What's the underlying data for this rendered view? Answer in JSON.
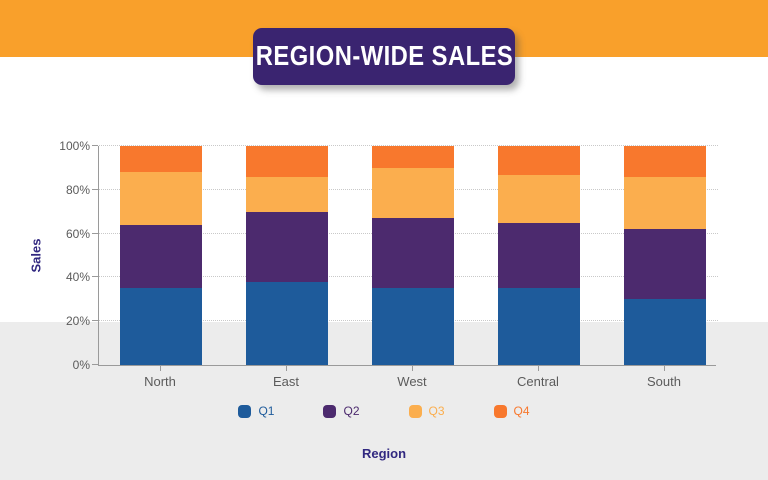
{
  "page": {
    "background_top_color": "#ffffff",
    "background_bottom_color": "#ececec",
    "banner_color": "#F9A02B"
  },
  "title": {
    "text": "REGION-WIDE SALES",
    "background": "#3A2470",
    "text_color": "#ffffff"
  },
  "chart_data": {
    "type": "bar",
    "variant": "stacked-percent",
    "title": "REGION-WIDE SALES",
    "xlabel": "Region",
    "ylabel": "Sales",
    "categories": [
      "North",
      "East",
      "West",
      "Central",
      "South"
    ],
    "series": [
      {
        "name": "Q1",
        "color": "#1E5B9B",
        "values": [
          35,
          38,
          35,
          35,
          30
        ]
      },
      {
        "name": "Q2",
        "color": "#4C2A6E",
        "values": [
          29,
          32,
          32,
          30,
          32
        ]
      },
      {
        "name": "Q3",
        "color": "#FBAE4E",
        "values": [
          24,
          16,
          23,
          22,
          24
        ]
      },
      {
        "name": "Q4",
        "color": "#F8782D",
        "values": [
          12,
          14,
          10,
          13,
          14
        ]
      }
    ],
    "ylim": [
      0,
      100
    ],
    "y_tick_values": [
      0,
      20,
      40,
      60,
      80,
      100
    ],
    "y_tick_labels": [
      "0%",
      "20%",
      "40%",
      "60%",
      "80%",
      "100%"
    ],
    "grid": "horizontal-dotted",
    "legend_position": "bottom",
    "axis_tick_text_color": "#5B5B5B",
    "axis_title_color": "#312880",
    "gridline_color": "#C9C9C9",
    "axis_line_color": "#9A9A9A"
  }
}
